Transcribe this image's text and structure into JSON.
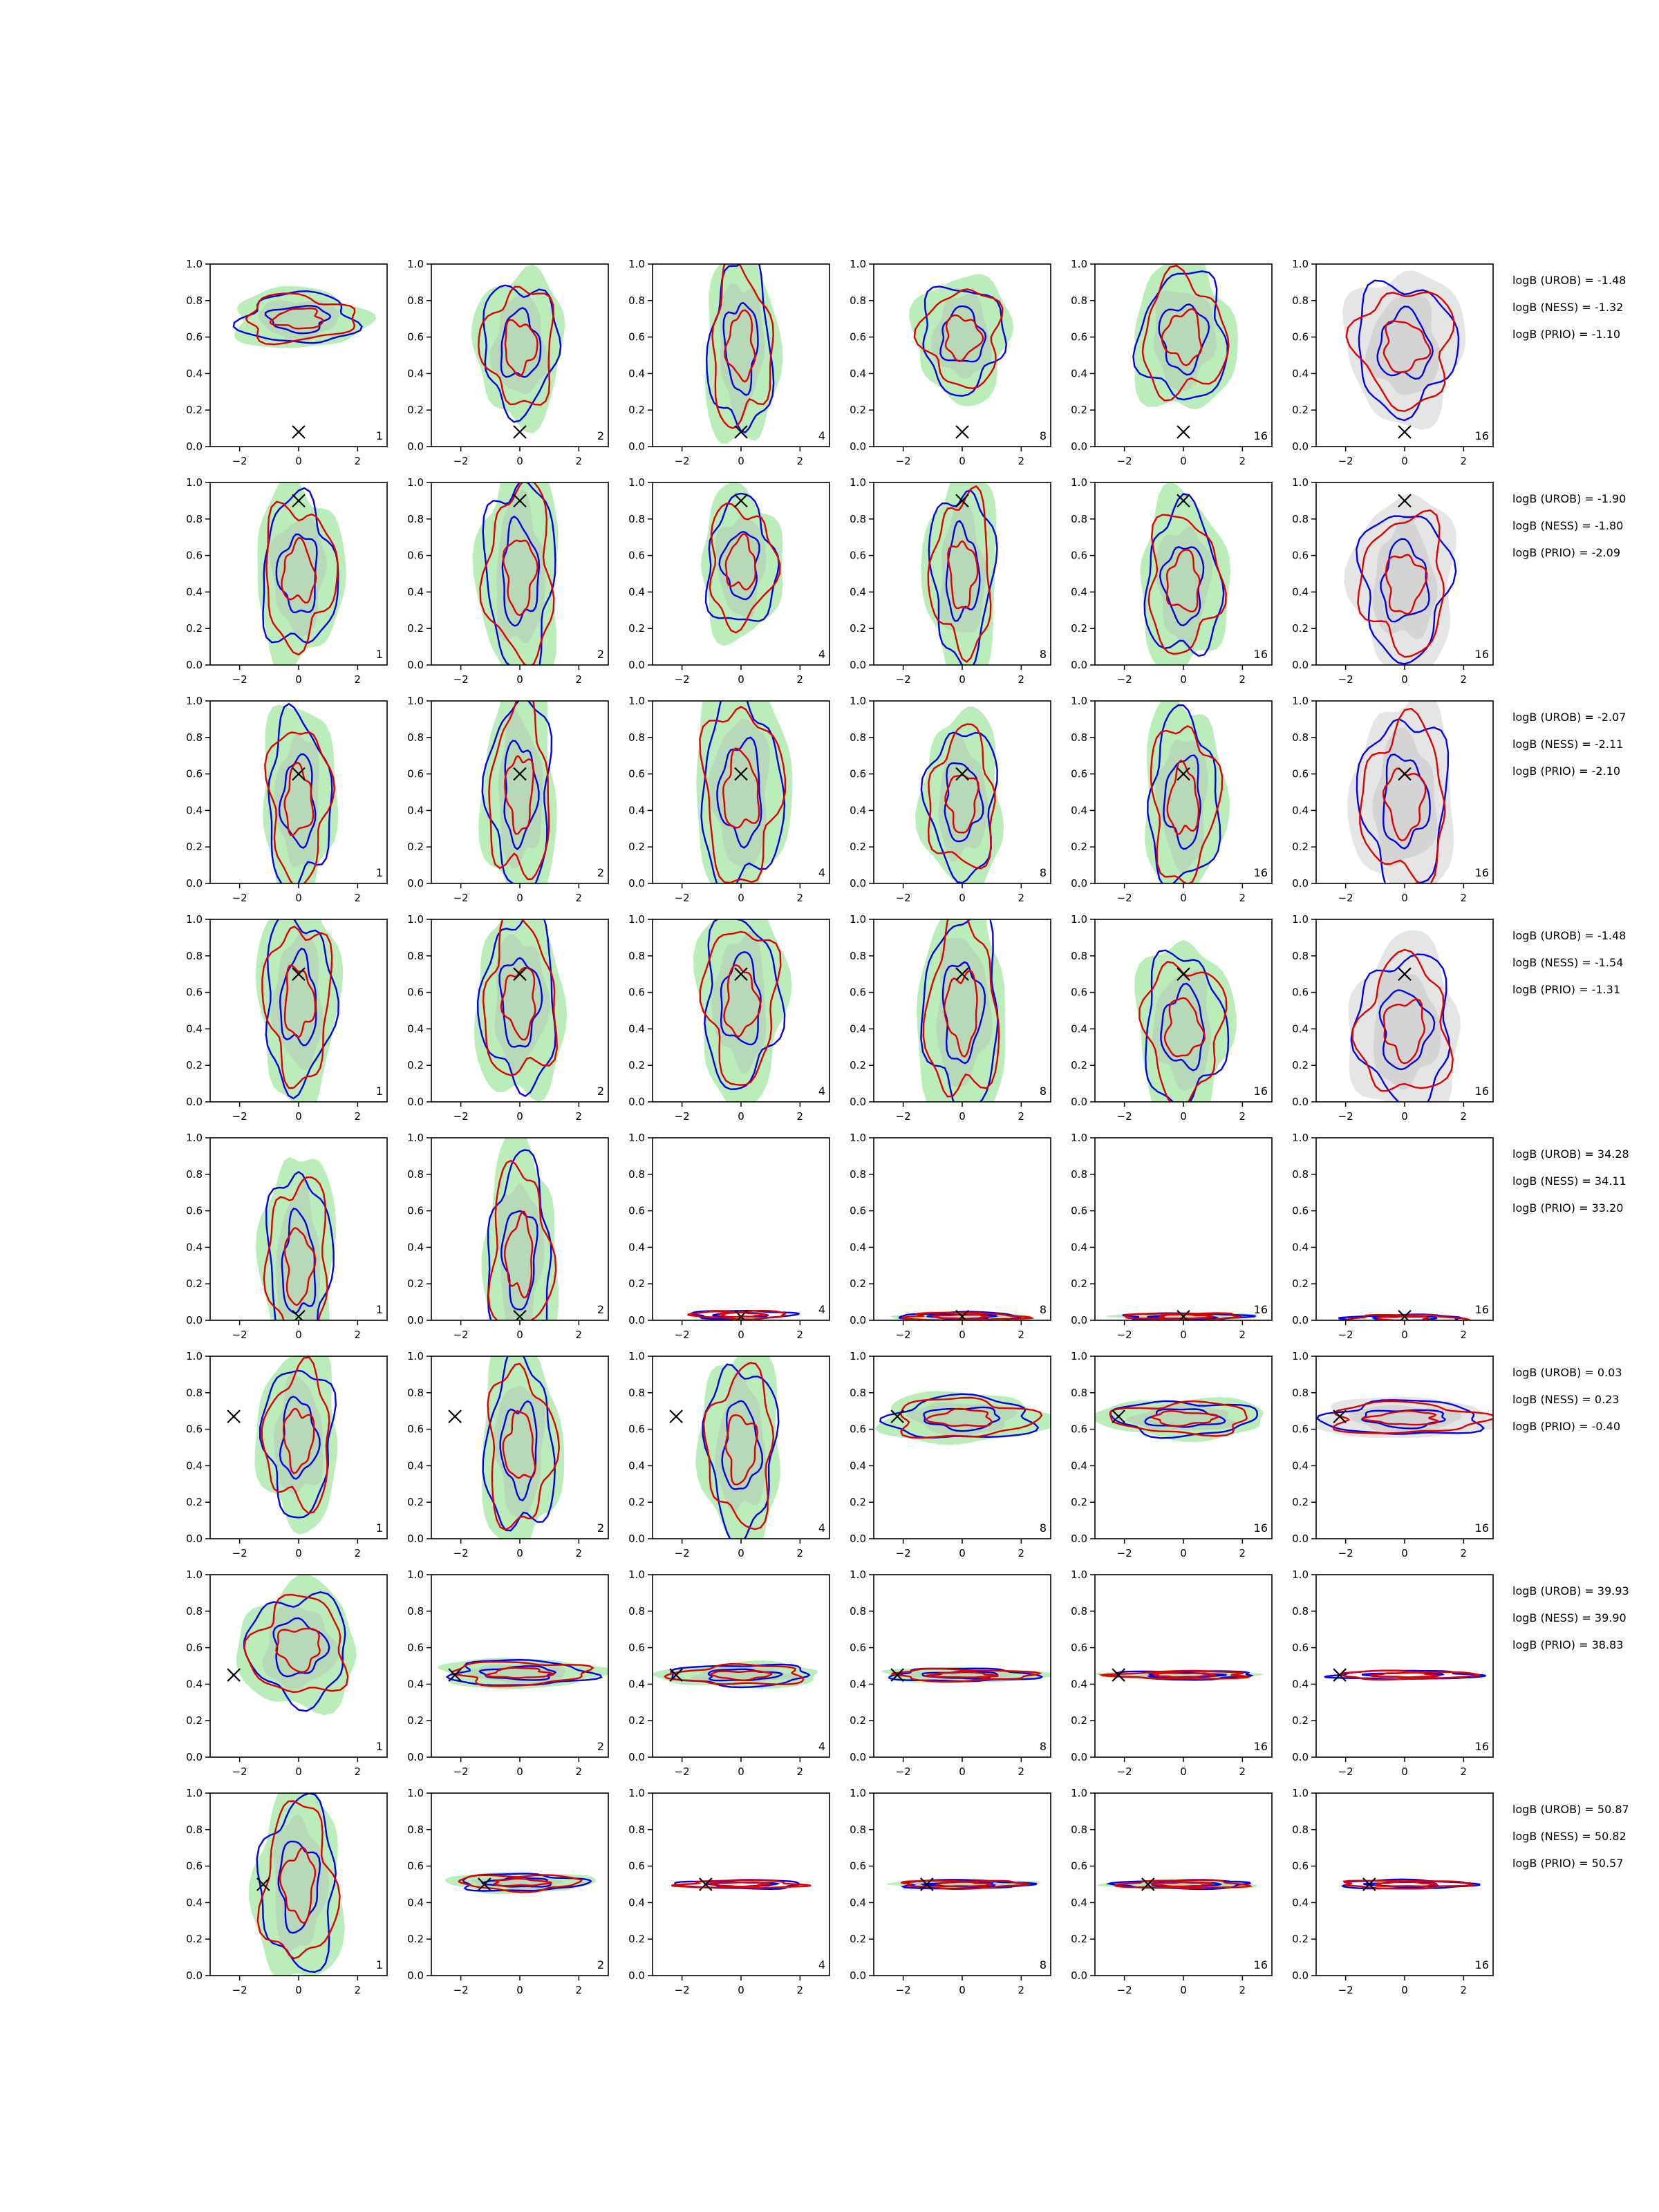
{
  "chart_data": {
    "type": "contour",
    "title": "",
    "xticks": [
      "−2",
      "0",
      "2"
    ],
    "yticks": [
      "0.0",
      "0.2",
      "0.4",
      "0.6",
      "0.8",
      "1.0"
    ],
    "xlim": [
      -3,
      3
    ],
    "ylim": [
      0,
      1
    ],
    "grid": false,
    "series_colors": {
      "filled_contours": "#b7ecb7",
      "inner_fill": "#b4b4b4",
      "prior_fill": "#e4e4e4",
      "line_a": "#0000ee",
      "line_b": "#e00000",
      "truth_marker": "#000000"
    },
    "columns": [
      {
        "label": "1"
      },
      {
        "label": "2"
      },
      {
        "label": "4"
      },
      {
        "label": "8"
      },
      {
        "label": "16"
      },
      {
        "label": "16"
      }
    ],
    "rows": [
      {
        "truth": [
          0.0,
          0.08
        ],
        "annotations": [
          "logB (UROB) = -1.48",
          "logB (NESS) = -1.32",
          "logB (PRIO) = -1.10"
        ],
        "panels": [
          {
            "cx": 0.0,
            "cy": 0.7,
            "sx": 1.8,
            "sy": 0.12,
            "wide": 1
          },
          {
            "cx": 0.0,
            "cy": 0.55,
            "sx": 1.2,
            "sy": 0.3,
            "wide": 0
          },
          {
            "cx": 0.0,
            "cy": 0.55,
            "sx": 1.0,
            "sy": 0.4,
            "wide": 0
          },
          {
            "cx": 0.0,
            "cy": 0.6,
            "sx": 1.3,
            "sy": 0.25,
            "wide": 0
          },
          {
            "cx": 0.0,
            "cy": 0.6,
            "sx": 1.4,
            "sy": 0.3,
            "wide": 0
          },
          {
            "cx": 0.0,
            "cy": 0.55,
            "sx": 1.6,
            "sy": 0.3,
            "wide": 0
          }
        ]
      },
      {
        "truth": [
          0.0,
          0.9
        ],
        "annotations": [
          "logB (UROB) = -1.90",
          "logB (NESS) = -1.80",
          "logB (PRIO) = -2.09"
        ],
        "panels": [
          {
            "cx": 0.0,
            "cy": 0.5,
            "sx": 1.2,
            "sy": 0.35,
            "wide": 0
          },
          {
            "cx": 0.0,
            "cy": 0.5,
            "sx": 1.1,
            "sy": 0.45,
            "wide": 0
          },
          {
            "cx": 0.0,
            "cy": 0.55,
            "sx": 1.1,
            "sy": 0.3,
            "wide": 0
          },
          {
            "cx": 0.0,
            "cy": 0.5,
            "sx": 1.0,
            "sy": 0.4,
            "wide": 0
          },
          {
            "cx": 0.0,
            "cy": 0.45,
            "sx": 1.2,
            "sy": 0.35,
            "wide": 0
          },
          {
            "cx": 0.0,
            "cy": 0.45,
            "sx": 1.4,
            "sy": 0.35,
            "wide": 0
          }
        ]
      },
      {
        "truth": [
          0.0,
          0.6
        ],
        "annotations": [
          "logB (UROB) = -2.07",
          "logB (NESS) = -2.11",
          "logB (PRIO) = -2.10"
        ],
        "panels": [
          {
            "cx": 0.0,
            "cy": 0.45,
            "sx": 1.0,
            "sy": 0.4,
            "wide": 0
          },
          {
            "cx": 0.0,
            "cy": 0.5,
            "sx": 1.0,
            "sy": 0.45,
            "wide": 0
          },
          {
            "cx": 0.0,
            "cy": 0.5,
            "sx": 1.3,
            "sy": 0.45,
            "wide": 0
          },
          {
            "cx": 0.0,
            "cy": 0.45,
            "sx": 1.1,
            "sy": 0.35,
            "wide": 0
          },
          {
            "cx": 0.0,
            "cy": 0.45,
            "sx": 1.1,
            "sy": 0.4,
            "wide": 0
          },
          {
            "cx": 0.0,
            "cy": 0.45,
            "sx": 1.4,
            "sy": 0.4,
            "wide": 0
          }
        ]
      },
      {
        "truth": [
          0.0,
          0.7
        ],
        "annotations": [
          "logB (UROB) = -1.48",
          "logB (NESS) = -1.54",
          "logB (PRIO) = -1.31"
        ],
        "panels": [
          {
            "cx": 0.0,
            "cy": 0.55,
            "sx": 1.1,
            "sy": 0.4,
            "wide": 0
          },
          {
            "cx": 0.0,
            "cy": 0.55,
            "sx": 1.2,
            "sy": 0.4,
            "wide": 0
          },
          {
            "cx": 0.0,
            "cy": 0.55,
            "sx": 1.2,
            "sy": 0.4,
            "wide": 0
          },
          {
            "cx": 0.0,
            "cy": 0.5,
            "sx": 1.2,
            "sy": 0.45,
            "wide": 0
          },
          {
            "cx": 0.0,
            "cy": 0.4,
            "sx": 1.3,
            "sy": 0.35,
            "wide": 0
          },
          {
            "cx": 0.0,
            "cy": 0.4,
            "sx": 1.5,
            "sy": 0.35,
            "wide": 0
          }
        ]
      },
      {
        "truth": [
          0.0,
          0.02
        ],
        "annotations": [
          "logB (UROB) = 34.28",
          "logB (NESS) = 34.11",
          "logB (PRIO) = 33.20"
        ],
        "panels": [
          {
            "cx": 0.0,
            "cy": 0.3,
            "sx": 1.0,
            "sy": 0.45,
            "wide": 0
          },
          {
            "cx": 0.0,
            "cy": 0.35,
            "sx": 1.0,
            "sy": 0.45,
            "wide": 0
          },
          {
            "cx": 0.0,
            "cy": 0.03,
            "sx": 1.6,
            "sy": 0.02,
            "wide": 1
          },
          {
            "cx": 0.0,
            "cy": 0.02,
            "sx": 1.9,
            "sy": 0.02,
            "wide": 1
          },
          {
            "cx": 0.0,
            "cy": 0.02,
            "sx": 1.9,
            "sy": 0.01,
            "wide": 1
          },
          {
            "cx": 0.0,
            "cy": 0.01,
            "sx": 1.9,
            "sy": 0.01,
            "wide": 1
          }
        ]
      },
      {
        "truth": [
          -2.2,
          0.67
        ],
        "annotations": [
          "logB (UROB) = 0.03",
          "logB (NESS) = 0.23",
          "logB (PRIO) = -0.40"
        ],
        "panels": [
          {
            "cx": 0.0,
            "cy": 0.55,
            "sx": 1.1,
            "sy": 0.35,
            "wide": 0
          },
          {
            "cx": 0.0,
            "cy": 0.5,
            "sx": 1.1,
            "sy": 0.4,
            "wide": 0
          },
          {
            "cx": 0.0,
            "cy": 0.5,
            "sx": 1.1,
            "sy": 0.4,
            "wide": 0
          },
          {
            "cx": 0.0,
            "cy": 0.66,
            "sx": 2.3,
            "sy": 0.1,
            "wide": 1
          },
          {
            "cx": 0.0,
            "cy": 0.66,
            "sx": 2.3,
            "sy": 0.08,
            "wide": 1
          },
          {
            "cx": 0.0,
            "cy": 0.66,
            "sx": 2.5,
            "sy": 0.08,
            "wide": 1
          }
        ]
      },
      {
        "truth": [
          -2.2,
          0.45
        ],
        "annotations": [
          "logB (UROB) = 39.93",
          "logB (NESS) = 39.90",
          "logB (PRIO) = 38.83"
        ],
        "panels": [
          {
            "cx": 0.0,
            "cy": 0.6,
            "sx": 1.6,
            "sy": 0.25,
            "wide": 1
          },
          {
            "cx": 0.0,
            "cy": 0.46,
            "sx": 2.2,
            "sy": 0.06,
            "wide": 1
          },
          {
            "cx": 0.0,
            "cy": 0.45,
            "sx": 2.2,
            "sy": 0.05,
            "wide": 1
          },
          {
            "cx": 0.0,
            "cy": 0.45,
            "sx": 2.3,
            "sy": 0.03,
            "wide": 1
          },
          {
            "cx": 0.0,
            "cy": 0.45,
            "sx": 2.2,
            "sy": 0.02,
            "wide": 1
          },
          {
            "cx": 0.0,
            "cy": 0.45,
            "sx": 2.3,
            "sy": 0.02,
            "wide": 1
          }
        ]
      },
      {
        "truth": [
          -1.2,
          0.5
        ],
        "annotations": [
          "logB (UROB) = 50.87",
          "logB (NESS) = 50.82",
          "logB (PRIO) = 50.57"
        ],
        "panels": [
          {
            "cx": 0.0,
            "cy": 0.5,
            "sx": 1.2,
            "sy": 0.4,
            "wide": 0
          },
          {
            "cx": 0.0,
            "cy": 0.51,
            "sx": 2.0,
            "sy": 0.04,
            "wide": 1
          },
          {
            "cx": 0.0,
            "cy": 0.5,
            "sx": 2.0,
            "sy": 0.02,
            "wide": 1
          },
          {
            "cx": 0.0,
            "cy": 0.5,
            "sx": 2.0,
            "sy": 0.02,
            "wide": 1
          },
          {
            "cx": 0.0,
            "cy": 0.5,
            "sx": 2.1,
            "sy": 0.02,
            "wide": 1
          },
          {
            "cx": 0.0,
            "cy": 0.5,
            "sx": 2.1,
            "sy": 0.02,
            "wide": 1
          }
        ]
      }
    ]
  }
}
